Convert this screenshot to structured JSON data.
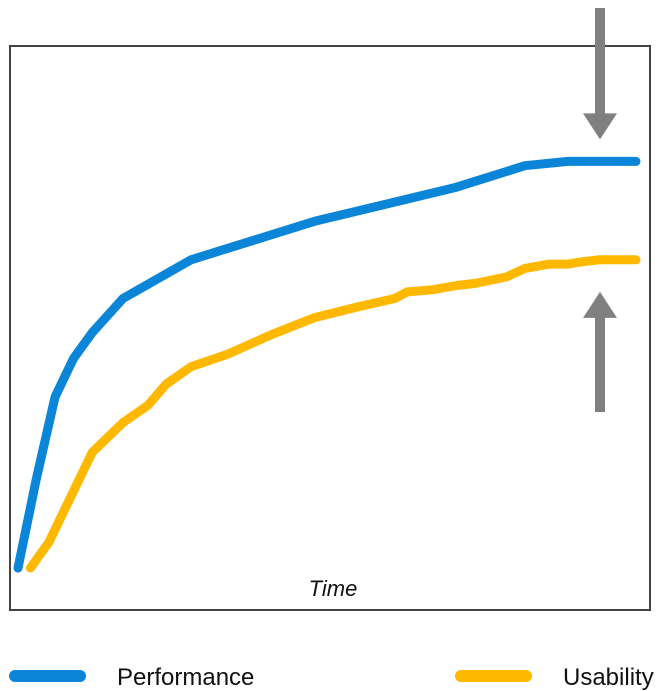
{
  "chart_data": {
    "type": "line",
    "title": "",
    "xlabel": "Time",
    "ylabel": "",
    "xlim": [
      0,
      100
    ],
    "ylim": [
      0,
      100
    ],
    "grid": false,
    "legend_position": "bottom",
    "series": [
      {
        "name": "Performance",
        "color": "#0A85D8",
        "x": [
          0,
          3,
          6,
          9,
          12,
          17,
          28,
          48,
          71,
          82,
          89,
          100
        ],
        "y": [
          0,
          21,
          40,
          49,
          55,
          63,
          72,
          81,
          89,
          94,
          95,
          95
        ]
      },
      {
        "name": "Usability",
        "color": "#FFB800",
        "x": [
          2,
          5,
          8,
          12,
          17,
          21,
          24,
          28,
          31,
          34,
          41,
          48,
          55,
          61,
          63,
          67,
          71,
          74,
          79,
          82,
          86,
          89,
          91,
          94,
          100
        ],
        "y": [
          0,
          6,
          15,
          27,
          34,
          38,
          43,
          47,
          48.5,
          50,
          54.5,
          58.5,
          61,
          63,
          64.5,
          65,
          66,
          66.5,
          68,
          70,
          71,
          71,
          71.5,
          72,
          72
        ]
      }
    ],
    "annotations": [
      {
        "type": "arrow",
        "direction": "down",
        "target": "Performance",
        "color": "#808080"
      },
      {
        "type": "arrow",
        "direction": "up",
        "target": "Usability",
        "color": "#808080"
      }
    ]
  },
  "frame_color": "#444444"
}
